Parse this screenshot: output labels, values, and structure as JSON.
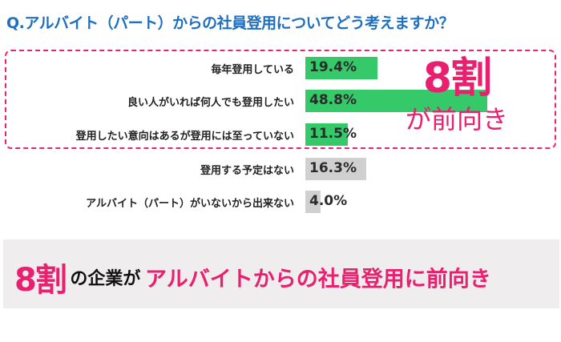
{
  "header": {
    "title": "Q.アルバイト（パート）からの社員登用についてどう考えますか？"
  },
  "chart_data": {
    "type": "bar",
    "orientation": "horizontal",
    "title": "Q.アルバイト（パート）からの社員登用についてどう考えますか？",
    "categories": [
      "毎年登用している",
      "良い人がいれば何人でも登用したい",
      "登用したい意向はあるが登用には至っていない",
      "登用する予定はない",
      "アルバイト（パート）がいないから出来ない"
    ],
    "values": [
      19.4,
      48.8,
      11.5,
      16.3,
      4.0
    ],
    "unit": "%",
    "highlight": {
      "indices": [
        0,
        1,
        2
      ],
      "color": "#35c96a",
      "label": "8割が前向き"
    },
    "other_color": "#d0d0d0",
    "xlabel": "",
    "ylabel": "",
    "grid": false,
    "legend": "none"
  },
  "rows": [
    {
      "label": "毎年登用している",
      "value": "19.4%",
      "pct": 19.4,
      "color": "#35c96a"
    },
    {
      "label": "良い人がいれば何人でも登用したい",
      "value": "48.8%",
      "pct": 48.8,
      "color": "#35c96a"
    },
    {
      "label": "登用したい意向はあるが登用には至っていない",
      "value": "11.5%",
      "pct": 11.5,
      "color": "#35c96a"
    },
    {
      "label": "登用する予定はない",
      "value": "16.3%",
      "pct": 16.3,
      "color": "#d0d0d0"
    },
    {
      "label": "アルバイト（パート）がいないから出来ない",
      "value": "4.0%",
      "pct": 4.0,
      "color": "#d0d0d0"
    }
  ],
  "callout": {
    "big": "8割",
    "small": "が前向き"
  },
  "banner": {
    "big": "8割",
    "mid": "の企業が",
    "pink": "アルバイトからの社員登用に前向き"
  },
  "colors": {
    "title": "#1f6fc0",
    "accent": "#e8206f",
    "green": "#35c96a",
    "gray": "#d0d0d0",
    "banner_bg": "#efedee"
  }
}
